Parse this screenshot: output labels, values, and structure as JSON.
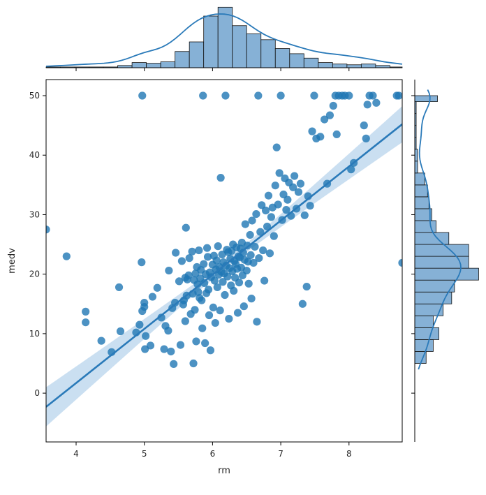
{
  "chart_data": {
    "type": "scatter",
    "kind": "jointplot-reg",
    "xlabel": "rm",
    "ylabel": "medv",
    "xlim": [
      3.56,
      8.78
    ],
    "ylim": [
      -8.2,
      52.7
    ],
    "x_ticks": [
      4,
      5,
      6,
      7,
      8
    ],
    "y_ticks": [
      0,
      10,
      20,
      30,
      40,
      50
    ],
    "grid": false,
    "legend": "none",
    "colors": {
      "point": "#1f77b4",
      "line": "#2a7ab9",
      "ci_band": "#9ec5e6",
      "hist_fill": "#86b1d6",
      "hist_edge": "#111111",
      "axis": "#000000"
    },
    "regression": {
      "slope": 9.1,
      "intercept": -34.7,
      "ci_halfwidth_at_mean": 0.7
    },
    "x_histogram": {
      "bin_edges": [
        3.56,
        3.77,
        3.98,
        4.19,
        4.4,
        4.61,
        4.82,
        5.03,
        5.24,
        5.45,
        5.66,
        5.87,
        6.08,
        6.29,
        6.5,
        6.71,
        6.92,
        7.13,
        7.34,
        7.55,
        7.76,
        7.97,
        8.18,
        8.39,
        8.6,
        8.78
      ],
      "counts": [
        1,
        1,
        1,
        1,
        1,
        3,
        7,
        6,
        8,
        22,
        35,
        70,
        82,
        57,
        46,
        38,
        26,
        19,
        13,
        7,
        5,
        4,
        5,
        3,
        1
      ]
    },
    "y_histogram": {
      "bin_edges": [
        5,
        7,
        9,
        11,
        13,
        15,
        17,
        19,
        21,
        23,
        25,
        27,
        29,
        31,
        33,
        35,
        37,
        39,
        41,
        43,
        45,
        47,
        49,
        50
      ],
      "counts": [
        8,
        13,
        17,
        13,
        20,
        26,
        28,
        45,
        38,
        38,
        24,
        15,
        12,
        10,
        9,
        7,
        2,
        2,
        1,
        1,
        1,
        1,
        16
      ]
    },
    "points": [
      [
        3.56,
        27.5
      ],
      [
        3.86,
        23.0
      ],
      [
        4.14,
        13.7
      ],
      [
        4.14,
        11.9
      ],
      [
        4.37,
        8.8
      ],
      [
        4.52,
        6.9
      ],
      [
        4.63,
        17.8
      ],
      [
        4.65,
        10.4
      ],
      [
        4.88,
        10.2
      ],
      [
        4.93,
        11.5
      ],
      [
        4.96,
        22.0
      ],
      [
        4.97,
        13.8
      ],
      [
        4.97,
        50.0
      ],
      [
        5.0,
        14.5
      ],
      [
        5.0,
        15.2
      ],
      [
        5.01,
        7.4
      ],
      [
        5.02,
        9.6
      ],
      [
        5.09,
        8.0
      ],
      [
        5.12,
        16.2
      ],
      [
        5.19,
        17.7
      ],
      [
        5.25,
        12.7
      ],
      [
        5.29,
        7.4
      ],
      [
        5.31,
        11.3
      ],
      [
        5.35,
        10.5
      ],
      [
        5.36,
        20.6
      ],
      [
        5.39,
        7.0
      ],
      [
        5.41,
        14.3
      ],
      [
        5.43,
        4.9
      ],
      [
        5.45,
        15.2
      ],
      [
        5.46,
        23.6
      ],
      [
        5.51,
        18.8
      ],
      [
        5.53,
        8.1
      ],
      [
        5.55,
        22.2
      ],
      [
        5.57,
        14.9
      ],
      [
        5.58,
        15.6
      ],
      [
        5.6,
        19.4
      ],
      [
        5.6,
        12.1
      ],
      [
        5.61,
        27.8
      ],
      [
        5.62,
        16.4
      ],
      [
        5.63,
        19.1
      ],
      [
        5.65,
        19.8
      ],
      [
        5.66,
        22.7
      ],
      [
        5.68,
        13.3
      ],
      [
        5.7,
        23.8
      ],
      [
        5.71,
        16.7
      ],
      [
        5.72,
        5.0
      ],
      [
        5.73,
        19.0
      ],
      [
        5.74,
        14.0
      ],
      [
        5.75,
        20.1
      ],
      [
        5.76,
        8.7
      ],
      [
        5.77,
        21.2
      ],
      [
        5.78,
        18.3
      ],
      [
        5.79,
        17.0
      ],
      [
        5.8,
        24.0
      ],
      [
        5.81,
        16.0
      ],
      [
        5.82,
        19.3
      ],
      [
        5.83,
        20.7
      ],
      [
        5.84,
        15.6
      ],
      [
        5.85,
        10.9
      ],
      [
        5.86,
        50.0
      ],
      [
        5.87,
        21.7
      ],
      [
        5.88,
        18.5
      ],
      [
        5.89,
        8.4
      ],
      [
        5.9,
        20.0
      ],
      [
        5.91,
        16.8
      ],
      [
        5.92,
        24.4
      ],
      [
        5.93,
        22.9
      ],
      [
        5.94,
        17.4
      ],
      [
        5.95,
        13.1
      ],
      [
        5.96,
        20.3
      ],
      [
        5.97,
        7.2
      ],
      [
        5.98,
        19.5
      ],
      [
        6.0,
        21.6
      ],
      [
        6.01,
        14.4
      ],
      [
        6.02,
        23.1
      ],
      [
        6.03,
        18.9
      ],
      [
        6.04,
        11.8
      ],
      [
        6.05,
        20.8
      ],
      [
        6.06,
        22.3
      ],
      [
        6.07,
        17.8
      ],
      [
        6.08,
        24.7
      ],
      [
        6.09,
        19.9
      ],
      [
        6.1,
        21.2
      ],
      [
        6.11,
        13.9
      ],
      [
        6.12,
        36.2
      ],
      [
        6.13,
        20.4
      ],
      [
        6.14,
        23.3
      ],
      [
        6.15,
        18.7
      ],
      [
        6.16,
        22.0
      ],
      [
        6.17,
        20.1
      ],
      [
        6.18,
        16.5
      ],
      [
        6.19,
        50.0
      ],
      [
        6.2,
        21.4
      ],
      [
        6.21,
        24.1
      ],
      [
        6.22,
        19.6
      ],
      [
        6.23,
        23.7
      ],
      [
        6.24,
        12.5
      ],
      [
        6.25,
        21.0
      ],
      [
        6.26,
        22.6
      ],
      [
        6.27,
        18.1
      ],
      [
        6.28,
        23.9
      ],
      [
        6.29,
        20.5
      ],
      [
        6.3,
        25.0
      ],
      [
        6.31,
        17.2
      ],
      [
        6.32,
        22.2
      ],
      [
        6.33,
        19.4
      ],
      [
        6.34,
        21.7
      ],
      [
        6.35,
        24.5
      ],
      [
        6.36,
        20.9
      ],
      [
        6.37,
        13.5
      ],
      [
        6.38,
        23.0
      ],
      [
        6.39,
        18.6
      ],
      [
        6.4,
        22.8
      ],
      [
        6.41,
        24.3
      ],
      [
        6.42,
        21.1
      ],
      [
        6.43,
        25.3
      ],
      [
        6.44,
        19.8
      ],
      [
        6.45,
        23.6
      ],
      [
        6.46,
        14.6
      ],
      [
        6.47,
        22.4
      ],
      [
        6.48,
        28.4
      ],
      [
        6.5,
        20.6
      ],
      [
        6.51,
        24.8
      ],
      [
        6.52,
        22.1
      ],
      [
        6.53,
        18.4
      ],
      [
        6.55,
        26.6
      ],
      [
        6.56,
        23.2
      ],
      [
        6.57,
        15.9
      ],
      [
        6.58,
        29.0
      ],
      [
        6.6,
        21.9
      ],
      [
        6.62,
        24.6
      ],
      [
        6.64,
        30.1
      ],
      [
        6.65,
        12.0
      ],
      [
        6.67,
        50.0
      ],
      [
        6.68,
        22.7
      ],
      [
        6.7,
        27.1
      ],
      [
        6.72,
        31.6
      ],
      [
        6.74,
        24.0
      ],
      [
        6.76,
        18.9
      ],
      [
        6.78,
        30.7
      ],
      [
        6.8,
        28.0
      ],
      [
        6.82,
        33.2
      ],
      [
        6.84,
        23.5
      ],
      [
        6.86,
        29.6
      ],
      [
        6.88,
        31.2
      ],
      [
        6.9,
        26.4
      ],
      [
        6.92,
        34.9
      ],
      [
        6.94,
        41.3
      ],
      [
        6.96,
        31.7
      ],
      [
        6.98,
        37.0
      ],
      [
        7.0,
        50.0
      ],
      [
        7.02,
        29.1
      ],
      [
        7.04,
        33.4
      ],
      [
        7.06,
        36.1
      ],
      [
        7.08,
        30.8
      ],
      [
        7.1,
        32.5
      ],
      [
        7.12,
        35.4
      ],
      [
        7.15,
        29.8
      ],
      [
        7.18,
        34.6
      ],
      [
        7.2,
        36.5
      ],
      [
        7.23,
        31.0
      ],
      [
        7.26,
        33.8
      ],
      [
        7.29,
        35.2
      ],
      [
        7.32,
        15.0
      ],
      [
        7.35,
        29.9
      ],
      [
        7.38,
        17.9
      ],
      [
        7.4,
        33.1
      ],
      [
        7.43,
        31.5
      ],
      [
        7.46,
        44.0
      ],
      [
        7.49,
        50.0
      ],
      [
        7.52,
        42.8
      ],
      [
        7.58,
        43.1
      ],
      [
        7.64,
        46.0
      ],
      [
        7.68,
        35.2
      ],
      [
        7.72,
        46.7
      ],
      [
        7.77,
        48.3
      ],
      [
        7.8,
        50.0
      ],
      [
        7.82,
        43.5
      ],
      [
        7.85,
        50.0
      ],
      [
        7.9,
        50.0
      ],
      [
        7.94,
        50.0
      ],
      [
        8.0,
        50.0
      ],
      [
        8.03,
        37.6
      ],
      [
        8.07,
        38.7
      ],
      [
        8.22,
        45.0
      ],
      [
        8.25,
        42.8
      ],
      [
        8.27,
        48.5
      ],
      [
        8.3,
        50.0
      ],
      [
        8.35,
        50.0
      ],
      [
        8.4,
        48.8
      ],
      [
        8.7,
        50.0
      ],
      [
        8.73,
        50.0
      ],
      [
        8.78,
        21.9
      ]
    ]
  }
}
